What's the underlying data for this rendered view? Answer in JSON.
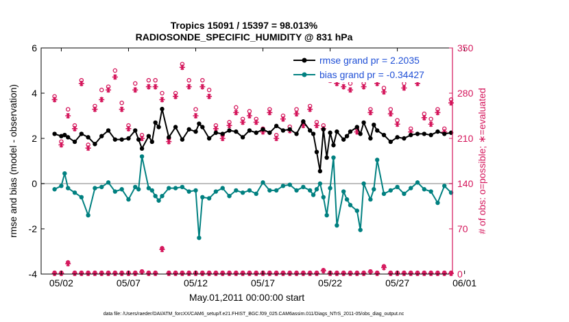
{
  "chart_data": {
    "type": "line",
    "title": "Tropics 15091 / 15397 = 98.013%",
    "subtitle": "RADIOSONDE_SPECIFIC_HUMIDITY @ 831 hPa",
    "xlabel": "May.01,2011 00:00:00 start",
    "ylabel_left": "rmse and bias (model - observation)",
    "ylabel_right": "# of obs: o=possible; ∗=evaluated",
    "footnote": "data file: /Users/raeder/DAI/ATM_forcXX/CAM6_setup/f.e21.FHIST_BGC.f09_025.CAM6assim.011/Diags_NTrS_2011-05/obs_diag_output.nc",
    "xlim": [
      0.5,
      31.1
    ],
    "ylim_left": [
      -4,
      6
    ],
    "ylim_right": [
      0,
      350
    ],
    "x_ticks": [
      {
        "value": 2,
        "label": "05/02"
      },
      {
        "value": 7,
        "label": "05/07"
      },
      {
        "value": 12,
        "label": "05/12"
      },
      {
        "value": 17,
        "label": "05/17"
      },
      {
        "value": 22,
        "label": "05/22"
      },
      {
        "value": 27,
        "label": "05/27"
      },
      {
        "value": 32,
        "label": "06/01"
      }
    ],
    "y_ticks_left": [
      {
        "value": -4,
        "label": "-4"
      },
      {
        "value": -2,
        "label": "-2"
      },
      {
        "value": 0,
        "label": "0"
      },
      {
        "value": 2,
        "label": "2"
      },
      {
        "value": 4,
        "label": "4"
      },
      {
        "value": 6,
        "label": "6"
      }
    ],
    "y_ticks_right": [
      {
        "value": 0,
        "label": "0"
      },
      {
        "value": 70,
        "label": "70"
      },
      {
        "value": 140,
        "label": "140"
      },
      {
        "value": 210,
        "label": "210"
      },
      {
        "value": 280,
        "label": "280"
      },
      {
        "value": 350,
        "label": "350"
      }
    ],
    "legend": [
      {
        "name": "rmse",
        "label": "rmse grand pr = 2.2035"
      },
      {
        "name": "bias",
        "label": "bias grand pr = -0.34427"
      }
    ],
    "colors": {
      "rmse": "#000000",
      "bias": "#008080",
      "obs": "#d4145a",
      "zero_line": "#bdbdbd"
    },
    "series": [
      {
        "name": "rmse",
        "x": [
          1.5,
          2,
          2.25,
          2.5,
          3,
          3.5,
          4,
          4.5,
          5,
          5.5,
          6,
          6.5,
          7,
          7.5,
          7.75,
          8,
          8.5,
          8.75,
          9,
          9.25,
          9.5,
          10,
          10.5,
          11,
          11.5,
          12,
          12.25,
          12.5,
          13,
          13.5,
          14,
          14.5,
          15,
          15.5,
          16,
          16.5,
          17,
          17.5,
          18,
          18.5,
          19,
          19.5,
          20,
          20.5,
          20.75,
          21,
          21.25,
          21.5,
          21.75,
          22,
          22.25,
          22.5,
          23,
          23.25,
          23.5,
          24,
          24.25,
          24.5,
          25,
          25.25,
          25.5,
          26,
          26.5,
          27,
          27.5,
          28,
          28.5,
          29,
          29.5,
          30,
          30.5,
          31
        ],
        "y": [
          2.2,
          2.1,
          2.15,
          2.05,
          1.85,
          2.2,
          2.05,
          1.75,
          2.1,
          2.35,
          1.95,
          1.95,
          2.0,
          2.35,
          1.95,
          1.55,
          2.1,
          1.85,
          2.7,
          2.5,
          3.3,
          2.05,
          2.5,
          1.95,
          2.4,
          2.3,
          2.65,
          2.5,
          2.0,
          2.25,
          2.2,
          2.35,
          2.3,
          2.05,
          2.35,
          2.25,
          2.4,
          2.25,
          2.55,
          2.35,
          2.4,
          2.2,
          2.75,
          2.35,
          2.2,
          1.4,
          0.55,
          2.4,
          1.15,
          2.25,
          1.7,
          2.3,
          1.95,
          2.1,
          2.3,
          2.5,
          2.2,
          2.7,
          2.0,
          2.6,
          2.35,
          2.15,
          1.85,
          2.05,
          2.0,
          2.15,
          2.2,
          2.2,
          2.15,
          2.3,
          2.2,
          2.25
        ]
      },
      {
        "name": "bias",
        "x": [
          1.5,
          2,
          2.25,
          2.5,
          3,
          3.5,
          4,
          4.5,
          5,
          5.5,
          6,
          6.5,
          7,
          7.5,
          7.75,
          8,
          8.5,
          8.75,
          9,
          9.25,
          9.5,
          10,
          10.5,
          11,
          11.5,
          12,
          12.25,
          12.5,
          13,
          13.5,
          14,
          14.5,
          15,
          15.5,
          16,
          16.5,
          17,
          17.5,
          18,
          18.5,
          19,
          19.5,
          20,
          20.5,
          20.75,
          21,
          21.25,
          21.5,
          21.75,
          22,
          22.25,
          22.5,
          23,
          23.25,
          23.5,
          24,
          24.25,
          24.5,
          25,
          25.25,
          25.5,
          26,
          26.5,
          27,
          27.5,
          28,
          28.5,
          29,
          29.5,
          30,
          30.5,
          31
        ],
        "y": [
          -0.25,
          -0.1,
          0.45,
          -0.2,
          -0.4,
          -0.6,
          -1.4,
          -0.2,
          -0.15,
          0.05,
          -0.35,
          -0.25,
          -0.7,
          -0.15,
          -0.25,
          1.2,
          -0.2,
          -0.3,
          -0.55,
          -0.75,
          -0.55,
          -0.2,
          -0.2,
          -0.15,
          -0.35,
          -0.3,
          -2.4,
          -0.6,
          -0.65,
          -0.35,
          -0.2,
          -0.55,
          -0.3,
          -0.4,
          -0.3,
          -0.45,
          0.05,
          -0.3,
          -0.3,
          -0.1,
          -0.05,
          -0.3,
          -0.15,
          -0.3,
          -0.5,
          -0.25,
          0.0,
          -0.6,
          -1.4,
          -0.2,
          1.15,
          -1.85,
          -0.35,
          -0.7,
          -0.95,
          -1.2,
          -2.05,
          0.0,
          -0.7,
          -0.25,
          1.05,
          -0.45,
          -0.3,
          -0.15,
          -0.45,
          -0.2,
          0.05,
          -0.25,
          -0.35,
          -0.85,
          -0.1,
          -0.4
        ]
      },
      {
        "name": "obs_possible",
        "x": [
          1.5,
          2,
          2.5,
          3,
          3.5,
          4,
          4.5,
          5,
          5.5,
          6,
          6.5,
          7,
          7.5,
          8,
          8.5,
          9,
          9.5,
          10,
          10.5,
          11,
          11.5,
          12,
          12.5,
          13,
          13.5,
          14,
          14.5,
          15,
          15.5,
          16,
          16.5,
          17,
          17.5,
          18,
          18.5,
          19,
          19.5,
          20,
          20.5,
          21,
          21.5,
          22,
          22.5,
          23,
          23.5,
          24,
          24.5,
          25,
          25.5,
          26,
          26.5,
          27,
          27.5,
          28,
          28.5,
          29,
          29.5,
          30,
          30.5,
          31
        ],
        "y": [
          275,
          205,
          255,
          230,
          300,
          200,
          260,
          285,
          290,
          315,
          265,
          230,
          295,
          215,
          300,
          300,
          280,
          210,
          280,
          325,
          300,
          255,
          300,
          285,
          230,
          215,
          235,
          258,
          240,
          252,
          240,
          225,
          255,
          215,
          245,
          228,
          255,
          235,
          260,
          235,
          230,
          305,
          300,
          300,
          295,
          225,
          295,
          255,
          300,
          288,
          255,
          238,
          295,
          225,
          300,
          248,
          240,
          255,
          225,
          270
        ]
      },
      {
        "name": "obs_evaluated",
        "x": [
          1.5,
          2,
          2.5,
          3,
          3.5,
          4,
          4.5,
          5,
          5.5,
          6,
          6.5,
          7,
          7.5,
          8,
          8.5,
          9,
          9.5,
          10,
          10.5,
          11,
          11.5,
          12,
          12.5,
          13,
          13.5,
          14,
          14.5,
          15,
          15.5,
          16,
          16.5,
          17,
          17.5,
          18,
          18.5,
          19,
          19.5,
          20,
          20.5,
          21,
          21.5,
          22,
          22.5,
          23,
          23.5,
          24,
          24.5,
          25,
          25.5,
          26,
          26.5,
          27,
          27.5,
          28,
          28.5,
          29,
          29.5,
          30,
          30.5,
          31
        ],
        "y": [
          270,
          200,
          245,
          225,
          295,
          195,
          255,
          270,
          285,
          305,
          255,
          225,
          285,
          210,
          290,
          290,
          270,
          205,
          275,
          320,
          290,
          245,
          290,
          275,
          225,
          210,
          230,
          250,
          235,
          245,
          235,
          220,
          250,
          210,
          240,
          222,
          248,
          230,
          255,
          230,
          225,
          300,
          295,
          290,
          285,
          220,
          290,
          250,
          295,
          282,
          248,
          232,
          288,
          220,
          295,
          242,
          232,
          250,
          220,
          265
        ]
      },
      {
        "name": "obs_possible_bottom",
        "x": [
          1.5,
          2,
          2.5,
          3,
          3.5,
          4,
          4.5,
          5,
          5.5,
          6,
          6.5,
          7,
          7.5,
          8,
          8.5,
          9,
          9.5,
          10,
          10.5,
          11,
          11.5,
          12,
          12.5,
          13,
          13.5,
          14,
          14.5,
          15,
          15.5,
          16,
          16.5,
          17,
          17.5,
          18,
          18.5,
          19,
          19.5,
          20,
          20.5,
          21,
          21.5,
          22,
          22.5,
          23,
          23.5,
          24,
          24.5,
          25,
          25.5,
          26,
          26.5,
          27,
          27.5,
          28,
          28.5,
          29,
          29.5,
          30,
          30.5,
          31
        ],
        "y": [
          2,
          2,
          18,
          2,
          2,
          2,
          2,
          2,
          2,
          2,
          2,
          2,
          2,
          4,
          2,
          2,
          40,
          2,
          2,
          2,
          2,
          2,
          2,
          2,
          2,
          2,
          2,
          2,
          2,
          2,
          2,
          2,
          2,
          2,
          2,
          2,
          2,
          2,
          2,
          2,
          6,
          2,
          2,
          2,
          2,
          2,
          2,
          4,
          2,
          12,
          2,
          2,
          2,
          2,
          2,
          2,
          2,
          2,
          2,
          2
        ]
      },
      {
        "name": "obs_evaluated_bottom",
        "x": [
          1.5,
          2,
          2.5,
          3,
          3.5,
          4,
          4.5,
          5,
          5.5,
          6,
          6.5,
          7,
          7.5,
          8,
          8.5,
          9,
          9.5,
          10,
          10.5,
          11,
          11.5,
          12,
          12.5,
          13,
          13.5,
          14,
          14.5,
          15,
          15.5,
          16,
          16.5,
          17,
          17.5,
          18,
          18.5,
          19,
          19.5,
          20,
          20.5,
          21,
          21.5,
          22,
          22.5,
          23,
          23.5,
          24,
          24.5,
          25,
          25.5,
          26,
          26.5,
          27,
          27.5,
          28,
          28.5,
          29,
          29.5,
          30,
          30.5,
          31
        ],
        "y": [
          1,
          1,
          16,
          1,
          1,
          1,
          1,
          1,
          1,
          1,
          1,
          1,
          1,
          3,
          1,
          1,
          38,
          1,
          1,
          1,
          1,
          1,
          1,
          1,
          1,
          1,
          1,
          1,
          1,
          1,
          1,
          1,
          1,
          1,
          1,
          1,
          1,
          1,
          1,
          1,
          5,
          1,
          1,
          1,
          1,
          1,
          1,
          3,
          1,
          10,
          1,
          1,
          1,
          1,
          1,
          1,
          1,
          1,
          1,
          1
        ]
      }
    ]
  }
}
